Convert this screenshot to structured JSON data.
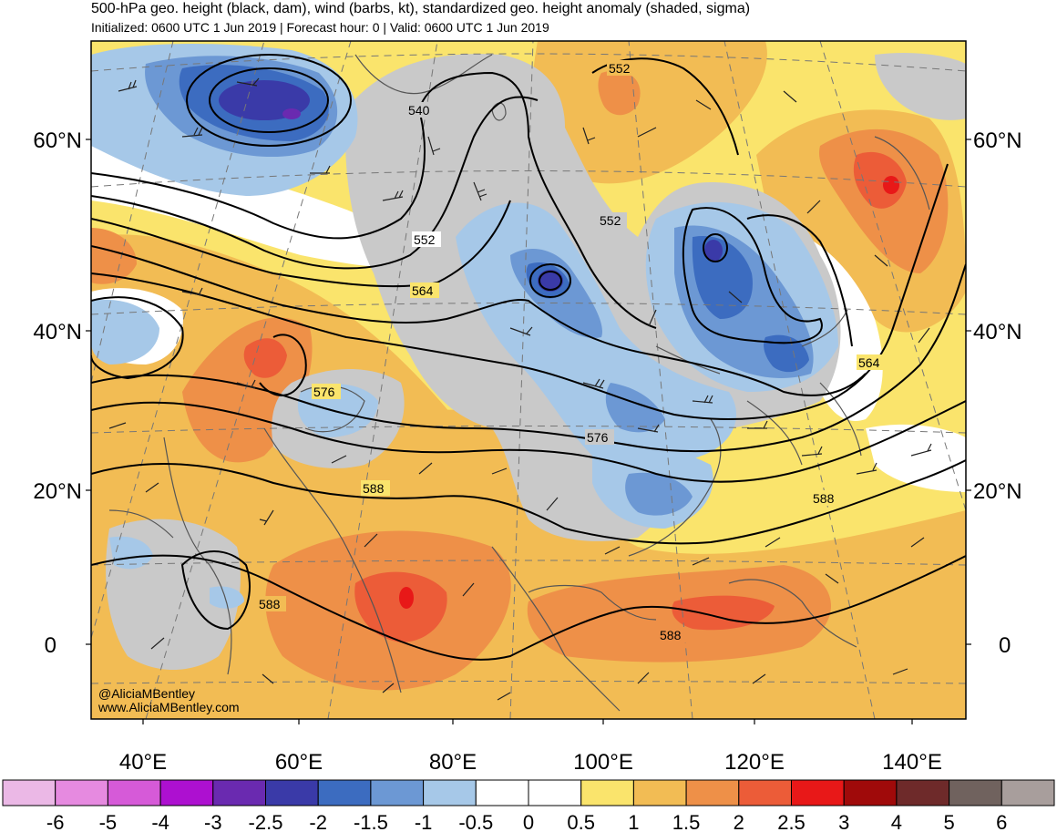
{
  "header": {
    "title": "500-hPa geo. height (black, dam), wind (barbs, kt), standardized geo. height anomaly (shaded, sigma)",
    "subtitle": "Initialized: 0600 UTC 1 Jun 2019 | Forecast hour: 0 | Valid: 0600 UTC 1 Jun 2019"
  },
  "credit": {
    "handle": "@AliciaMBentley",
    "website": "www.AliciaMBentley.com"
  },
  "axes": {
    "lat_labels": [
      "60°N",
      "40°N",
      "20°N",
      "0"
    ],
    "lon_labels": [
      "40°E",
      "60°E",
      "80°E",
      "100°E",
      "120°E",
      "140°E"
    ]
  },
  "contour_labels": [
    "552",
    "540",
    "552",
    "552",
    "564",
    "576",
    "564",
    "576",
    "588",
    "588",
    "588",
    "588"
  ],
  "colorbar": {
    "labels": [
      "-6",
      "-5",
      "-4",
      "-3",
      "-2.5",
      "-2",
      "-1.5",
      "-1",
      "-0.5",
      "0",
      "0.5",
      "1",
      "1.5",
      "2",
      "2.5",
      "3",
      "4",
      "5",
      "6"
    ],
    "colors": [
      "#ebb8e6",
      "#e68ae0",
      "#d65ad8",
      "#ad10d0",
      "#6a2ab0",
      "#3a3aa8",
      "#3c6cc0",
      "#6c98d4",
      "#a6c8e8",
      "#ffffff",
      "#ffffff",
      "#fae46c",
      "#f2bc54",
      "#ee9048",
      "#ec5c38",
      "#e81818",
      "#a00a0a",
      "#6e2a2a",
      "#70625e",
      "#a89e9c"
    ]
  },
  "colors": {
    "neutral_gray": "#c9c9c9",
    "contour": "#000000",
    "coastline": "#555555"
  }
}
